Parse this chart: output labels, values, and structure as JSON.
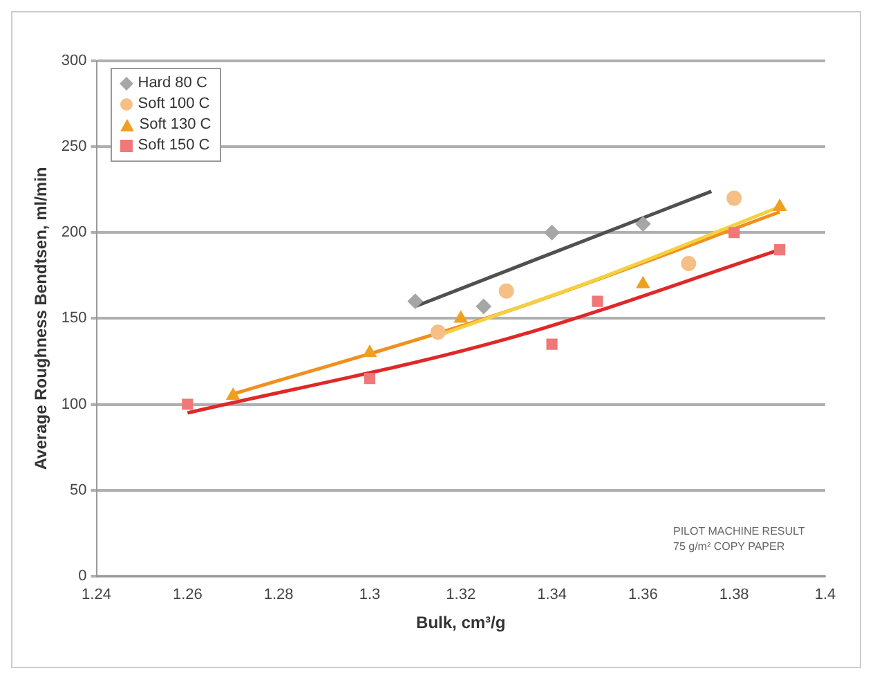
{
  "chart_data": {
    "type": "scatter",
    "xlabel": "Bulk, cm³/g",
    "ylabel": "Average Roughness Bendtsen, ml/min",
    "xlim": [
      1.24,
      1.4
    ],
    "xticks": [
      1.24,
      1.26,
      1.28,
      {
        "value": 1.3,
        "label": "1.3"
      },
      1.32,
      1.34,
      1.36,
      1.38,
      {
        "value": 1.4,
        "label": "1.4"
      }
    ],
    "ylim": [
      0,
      300
    ],
    "yticks": [
      0,
      50,
      100,
      150,
      200,
      250,
      300
    ],
    "grid": "y",
    "legend": "top left",
    "annotations": [
      "PILOT MACHINE RESULT",
      "75 g/m² COPY PAPER"
    ],
    "series": [
      {
        "name": "Hard 80 C",
        "type": "scatter",
        "marker": "diamond",
        "color": "#a6a6a6",
        "x": [
          1.31,
          1.325,
          1.34,
          1.36
        ],
        "values": [
          160,
          157,
          200,
          205
        ]
      },
      {
        "name": "Soft 100 C",
        "type": "scatter",
        "marker": "circle",
        "color": "#f5bf86",
        "x": [
          1.315,
          1.33,
          1.37,
          1.38
        ],
        "values": [
          142,
          166,
          182,
          220
        ]
      },
      {
        "name": "Soft 130 C",
        "type": "scatter",
        "marker": "triangle",
        "color": "#f0a020",
        "x": [
          1.27,
          1.3,
          1.32,
          1.36,
          1.39
        ],
        "values": [
          105,
          130,
          150,
          170,
          215
        ]
      },
      {
        "name": "Soft 150 C",
        "type": "scatter",
        "marker": "square",
        "color": "#f07878",
        "x": [
          1.26,
          1.3,
          1.34,
          1.35,
          1.38,
          1.39
        ],
        "values": [
          100,
          115,
          135,
          160,
          200,
          190
        ]
      },
      {
        "type": "line",
        "marker": "none",
        "color": "#505050",
        "x": [
          1.31,
          1.34,
          1.375
        ],
        "values": [
          157,
          188,
          224
        ]
      },
      {
        "type": "line",
        "marker": "none",
        "color": "#f5d040",
        "x": [
          1.315,
          1.35,
          1.39
        ],
        "values": [
          140,
          173,
          215
        ]
      },
      {
        "type": "line",
        "marker": "none",
        "color": "#f09020",
        "x": [
          1.27,
          1.33,
          1.39
        ],
        "values": [
          106,
          154,
          212
        ]
      },
      {
        "type": "line",
        "marker": "none",
        "color": "#e02828",
        "x": [
          1.26,
          1.33,
          1.39
        ],
        "values": [
          95,
          138,
          190
        ]
      }
    ]
  }
}
